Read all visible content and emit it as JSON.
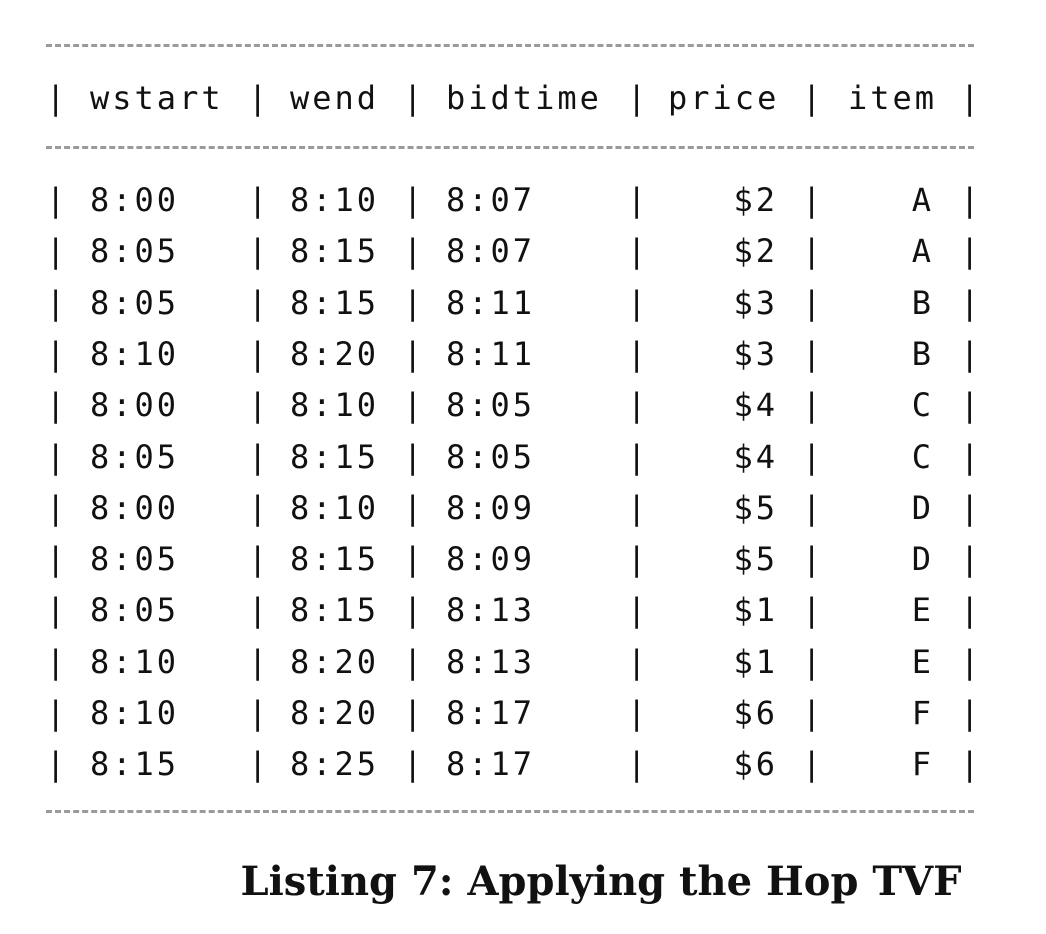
{
  "listing": {
    "columns": [
      "wstart",
      "wend",
      "bidtime",
      "price",
      "item"
    ],
    "separator": "|",
    "rows": [
      [
        "8:00",
        "8:10",
        "8:07",
        "$2",
        "A"
      ],
      [
        "8:05",
        "8:15",
        "8:07",
        "$2",
        "A"
      ],
      [
        "8:05",
        "8:15",
        "8:11",
        "$3",
        "B"
      ],
      [
        "8:10",
        "8:20",
        "8:11",
        "$3",
        "B"
      ],
      [
        "8:00",
        "8:10",
        "8:05",
        "$4",
        "C"
      ],
      [
        "8:05",
        "8:15",
        "8:05",
        "$4",
        "C"
      ],
      [
        "8:00",
        "8:10",
        "8:09",
        "$5",
        "D"
      ],
      [
        "8:05",
        "8:15",
        "8:09",
        "$5",
        "D"
      ],
      [
        "8:05",
        "8:15",
        "8:13",
        "$1",
        "E"
      ],
      [
        "8:10",
        "8:20",
        "8:13",
        "$1",
        "E"
      ],
      [
        "8:10",
        "8:20",
        "8:17",
        "$6",
        "F"
      ],
      [
        "8:15",
        "8:25",
        "8:17",
        "$6",
        "F"
      ]
    ],
    "caption": "Listing 7: Applying the Hop TVF"
  }
}
